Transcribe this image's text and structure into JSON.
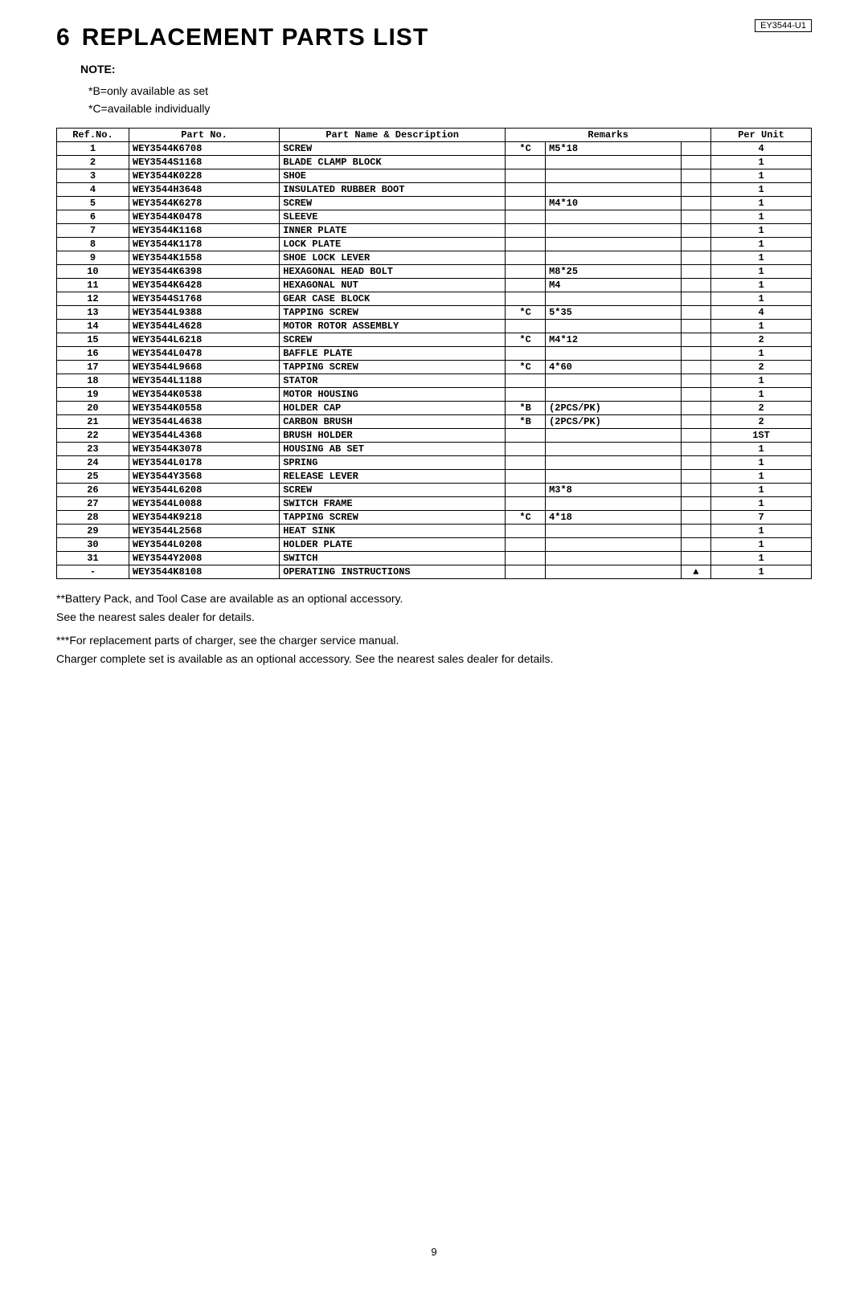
{
  "model_code": "EY3544-U1",
  "section_number": "6",
  "section_title": "REPLACEMENT PARTS LIST",
  "note_label": "NOTE:",
  "note_lines": [
    "*B=only available as set",
    "*C=available individually"
  ],
  "table": {
    "headers": {
      "ref": "Ref.No.",
      "part_no": "Part No.",
      "name": "Part Name & Description",
      "remarks": "Remarks",
      "per_unit": "Per Unit"
    },
    "rows": [
      {
        "ref": "1",
        "part_no": "WEY3544K6708",
        "name": "SCREW",
        "set": "*C",
        "remark": "M5*18",
        "mark": "",
        "per_unit": "4"
      },
      {
        "ref": "2",
        "part_no": "WEY3544S1168",
        "name": "BLADE CLAMP BLOCK",
        "set": "",
        "remark": "",
        "mark": "",
        "per_unit": "1"
      },
      {
        "ref": "3",
        "part_no": "WEY3544K0228",
        "name": "SHOE",
        "set": "",
        "remark": "",
        "mark": "",
        "per_unit": "1"
      },
      {
        "ref": "4",
        "part_no": "WEY3544H3648",
        "name": "INSULATED RUBBER BOOT",
        "set": "",
        "remark": "",
        "mark": "",
        "per_unit": "1"
      },
      {
        "ref": "5",
        "part_no": "WEY3544K6278",
        "name": "SCREW",
        "set": "",
        "remark": "M4*10",
        "mark": "",
        "per_unit": "1"
      },
      {
        "ref": "6",
        "part_no": "WEY3544K0478",
        "name": "SLEEVE",
        "set": "",
        "remark": "",
        "mark": "",
        "per_unit": "1"
      },
      {
        "ref": "7",
        "part_no": "WEY3544K1168",
        "name": "INNER PLATE",
        "set": "",
        "remark": "",
        "mark": "",
        "per_unit": "1"
      },
      {
        "ref": "8",
        "part_no": "WEY3544K1178",
        "name": "LOCK PLATE",
        "set": "",
        "remark": "",
        "mark": "",
        "per_unit": "1"
      },
      {
        "ref": "9",
        "part_no": "WEY3544K1558",
        "name": "SHOE LOCK LEVER",
        "set": "",
        "remark": "",
        "mark": "",
        "per_unit": "1"
      },
      {
        "ref": "10",
        "part_no": "WEY3544K6398",
        "name": "HEXAGONAL HEAD BOLT",
        "set": "",
        "remark": "M8*25",
        "mark": "",
        "per_unit": "1"
      },
      {
        "ref": "11",
        "part_no": "WEY3544K6428",
        "name": "HEXAGONAL NUT",
        "set": "",
        "remark": "M4",
        "mark": "",
        "per_unit": "1"
      },
      {
        "ref": "12",
        "part_no": "WEY3544S1768",
        "name": "GEAR CASE BLOCK",
        "set": "",
        "remark": "",
        "mark": "",
        "per_unit": "1"
      },
      {
        "ref": "13",
        "part_no": "WEY3544L9388",
        "name": "TAPPING SCREW",
        "set": "*C",
        "remark": "5*35",
        "mark": "",
        "per_unit": "4"
      },
      {
        "ref": "14",
        "part_no": "WEY3544L4628",
        "name": "MOTOR ROTOR ASSEMBLY",
        "set": "",
        "remark": "",
        "mark": "",
        "per_unit": "1"
      },
      {
        "ref": "15",
        "part_no": "WEY3544L6218",
        "name": "SCREW",
        "set": "*C",
        "remark": "M4*12",
        "mark": "",
        "per_unit": "2"
      },
      {
        "ref": "16",
        "part_no": "WEY3544L0478",
        "name": "BAFFLE PLATE",
        "set": "",
        "remark": "",
        "mark": "",
        "per_unit": "1"
      },
      {
        "ref": "17",
        "part_no": "WEY3544L9668",
        "name": "TAPPING SCREW",
        "set": "*C",
        "remark": "4*60",
        "mark": "",
        "per_unit": "2"
      },
      {
        "ref": "18",
        "part_no": "WEY3544L1188",
        "name": "STATOR",
        "set": "",
        "remark": "",
        "mark": "",
        "per_unit": "1"
      },
      {
        "ref": "19",
        "part_no": "WEY3544K0538",
        "name": "MOTOR HOUSING",
        "set": "",
        "remark": "",
        "mark": "",
        "per_unit": "1"
      },
      {
        "ref": "20",
        "part_no": "WEY3544K0558",
        "name": "HOLDER CAP",
        "set": "*B",
        "remark": "(2PCS/PK)",
        "mark": "",
        "per_unit": "2"
      },
      {
        "ref": "21",
        "part_no": "WEY3544L4638",
        "name": "CARBON BRUSH",
        "set": "*B",
        "remark": "(2PCS/PK)",
        "mark": "",
        "per_unit": "2"
      },
      {
        "ref": "22",
        "part_no": "WEY3544L4368",
        "name": "BRUSH HOLDER",
        "set": "",
        "remark": "",
        "mark": "",
        "per_unit": "1ST"
      },
      {
        "ref": "23",
        "part_no": "WEY3544K3078",
        "name": "HOUSING AB SET",
        "set": "",
        "remark": "",
        "mark": "",
        "per_unit": "1"
      },
      {
        "ref": "24",
        "part_no": "WEY3544L0178",
        "name": "SPRING",
        "set": "",
        "remark": "",
        "mark": "",
        "per_unit": "1"
      },
      {
        "ref": "25",
        "part_no": "WEY3544Y3568",
        "name": "RELEASE LEVER",
        "set": "",
        "remark": "",
        "mark": "",
        "per_unit": "1"
      },
      {
        "ref": "26",
        "part_no": "WEY3544L6208",
        "name": "SCREW",
        "set": "",
        "remark": "M3*8",
        "mark": "",
        "per_unit": "1"
      },
      {
        "ref": "27",
        "part_no": "WEY3544L0088",
        "name": "SWITCH FRAME",
        "set": "",
        "remark": "",
        "mark": "",
        "per_unit": "1"
      },
      {
        "ref": "28",
        "part_no": "WEY3544K9218",
        "name": "TAPPING SCREW",
        "set": "*C",
        "remark": "4*18",
        "mark": "",
        "per_unit": "7"
      },
      {
        "ref": "29",
        "part_no": "WEY3544L2568",
        "name": "HEAT SINK",
        "set": "",
        "remark": "",
        "mark": "",
        "per_unit": "1"
      },
      {
        "ref": "30",
        "part_no": "WEY3544L0208",
        "name": "HOLDER PLATE",
        "set": "",
        "remark": "",
        "mark": "",
        "per_unit": "1"
      },
      {
        "ref": "31",
        "part_no": "WEY3544Y2008",
        "name": "SWITCH",
        "set": "",
        "remark": "",
        "mark": "",
        "per_unit": "1"
      },
      {
        "ref": "-",
        "part_no": "WEY3544K8108",
        "name": "OPERATING INSTRUCTIONS",
        "set": "",
        "remark": "",
        "mark": "▲",
        "per_unit": "1"
      }
    ]
  },
  "footnotes": [
    "**Battery Pack, and Tool Case are available as an optional accessory.",
    "See the nearest sales dealer for details.",
    "***For replacement parts of charger, see the charger service manual.",
    "Charger complete set is available as an optional accessory. See the nearest sales dealer for details."
  ],
  "page_number": "9"
}
